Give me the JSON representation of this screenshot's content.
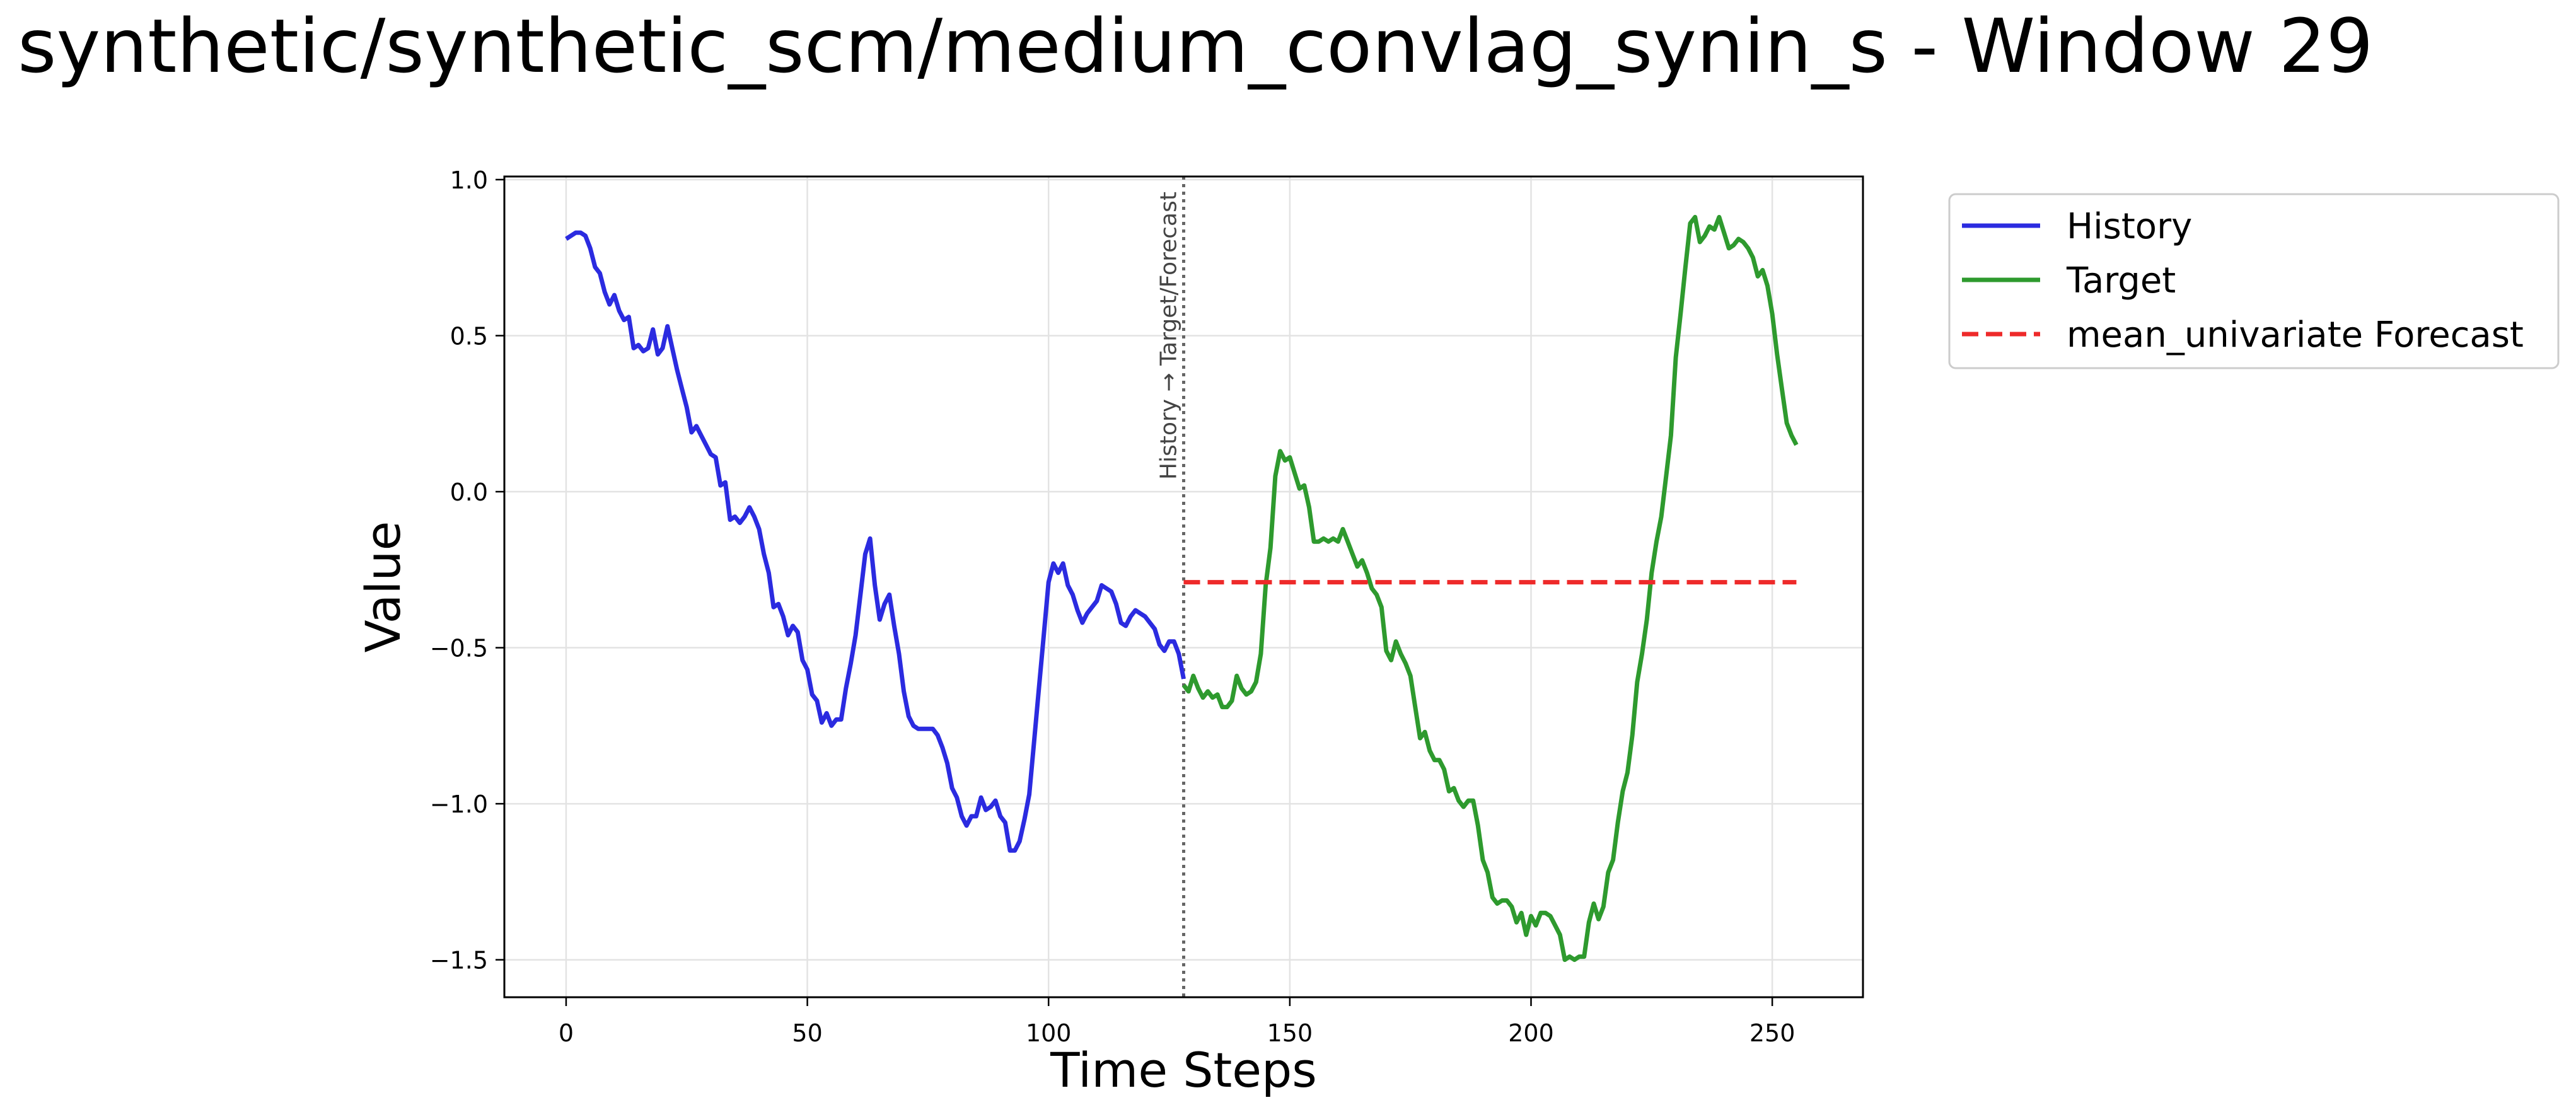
{
  "title": "synthetic/synthetic_scm/medium_convlag_synin_s - Window 29",
  "chart_data": {
    "type": "line",
    "title": "synthetic/synthetic_scm/medium_convlag_synin_s - Window 29",
    "xlabel": "Time Steps",
    "ylabel": "Value",
    "xlim": [
      -12.8,
      268.8
    ],
    "ylim": [
      -1.62,
      1.01
    ],
    "xticks": [
      0,
      50,
      100,
      150,
      200,
      250
    ],
    "yticks": [
      -1.5,
      -1.0,
      -0.5,
      0.0,
      0.5,
      1.0
    ],
    "xtick_labels": [
      "0",
      "50",
      "100",
      "150",
      "200",
      "250"
    ],
    "ytick_labels": [
      "−1.5",
      "−1.0",
      "−0.5",
      "0.0",
      "0.5",
      "1.0"
    ],
    "grid": true,
    "legend_position": "outside-top-right",
    "divider": {
      "x": 128,
      "label": "History → Target/Forecast",
      "color": "#666666"
    },
    "series": [
      {
        "name": "History",
        "color": "#2b2be0",
        "style": "solid",
        "points": [
          [
            0,
            0.81
          ],
          [
            1,
            0.82
          ],
          [
            2,
            0.83
          ],
          [
            3,
            0.83
          ],
          [
            4,
            0.82
          ],
          [
            5,
            0.78
          ],
          [
            6,
            0.72
          ],
          [
            7,
            0.7
          ],
          [
            8,
            0.64
          ],
          [
            9,
            0.6
          ],
          [
            10,
            0.63
          ],
          [
            11,
            0.58
          ],
          [
            12,
            0.55
          ],
          [
            13,
            0.56
          ],
          [
            14,
            0.46
          ],
          [
            15,
            0.47
          ],
          [
            16,
            0.45
          ],
          [
            17,
            0.46
          ],
          [
            18,
            0.52
          ],
          [
            19,
            0.44
          ],
          [
            20,
            0.46
          ],
          [
            21,
            0.53
          ],
          [
            22,
            0.46
          ],
          [
            23,
            0.39
          ],
          [
            24,
            0.33
          ],
          [
            25,
            0.27
          ],
          [
            26,
            0.19
          ],
          [
            27,
            0.21
          ],
          [
            28,
            0.18
          ],
          [
            29,
            0.15
          ],
          [
            30,
            0.12
          ],
          [
            31,
            0.11
          ],
          [
            32,
            0.02
          ],
          [
            33,
            0.03
          ],
          [
            34,
            -0.09
          ],
          [
            35,
            -0.08
          ],
          [
            36,
            -0.1
          ],
          [
            37,
            -0.08
          ],
          [
            38,
            -0.05
          ],
          [
            39,
            -0.08
          ],
          [
            40,
            -0.12
          ],
          [
            41,
            -0.2
          ],
          [
            42,
            -0.26
          ],
          [
            43,
            -0.37
          ],
          [
            44,
            -0.36
          ],
          [
            45,
            -0.4
          ],
          [
            46,
            -0.46
          ],
          [
            47,
            -0.43
          ],
          [
            48,
            -0.45
          ],
          [
            49,
            -0.54
          ],
          [
            50,
            -0.57
          ],
          [
            51,
            -0.65
          ],
          [
            52,
            -0.67
          ],
          [
            53,
            -0.74
          ],
          [
            54,
            -0.71
          ],
          [
            55,
            -0.75
          ],
          [
            56,
            -0.73
          ],
          [
            57,
            -0.73
          ],
          [
            58,
            -0.63
          ],
          [
            59,
            -0.55
          ],
          [
            60,
            -0.46
          ],
          [
            61,
            -0.33
          ],
          [
            62,
            -0.2
          ],
          [
            63,
            -0.15
          ],
          [
            64,
            -0.3
          ],
          [
            65,
            -0.41
          ],
          [
            66,
            -0.36
          ],
          [
            67,
            -0.33
          ],
          [
            68,
            -0.43
          ],
          [
            69,
            -0.52
          ],
          [
            70,
            -0.64
          ],
          [
            71,
            -0.72
          ],
          [
            72,
            -0.75
          ],
          [
            73,
            -0.76
          ],
          [
            74,
            -0.76
          ],
          [
            75,
            -0.76
          ],
          [
            76,
            -0.76
          ],
          [
            77,
            -0.78
          ],
          [
            78,
            -0.82
          ],
          [
            79,
            -0.87
          ],
          [
            80,
            -0.95
          ],
          [
            81,
            -0.98
          ],
          [
            82,
            -1.04
          ],
          [
            83,
            -1.07
          ],
          [
            84,
            -1.04
          ],
          [
            85,
            -1.04
          ],
          [
            86,
            -0.98
          ],
          [
            87,
            -1.02
          ],
          [
            88,
            -1.01
          ],
          [
            89,
            -0.99
          ],
          [
            90,
            -1.04
          ],
          [
            91,
            -1.06
          ],
          [
            92,
            -1.15
          ],
          [
            93,
            -1.15
          ],
          [
            94,
            -1.12
          ],
          [
            95,
            -1.05
          ],
          [
            96,
            -0.97
          ],
          [
            97,
            -0.8
          ],
          [
            98,
            -0.63
          ],
          [
            99,
            -0.46
          ],
          [
            100,
            -0.29
          ],
          [
            101,
            -0.23
          ],
          [
            102,
            -0.26
          ],
          [
            103,
            -0.23
          ],
          [
            104,
            -0.3
          ],
          [
            105,
            -0.33
          ],
          [
            106,
            -0.38
          ],
          [
            107,
            -0.42
          ],
          [
            108,
            -0.39
          ],
          [
            109,
            -0.37
          ],
          [
            110,
            -0.35
          ],
          [
            111,
            -0.3
          ],
          [
            112,
            -0.31
          ],
          [
            113,
            -0.32
          ],
          [
            114,
            -0.36
          ],
          [
            115,
            -0.42
          ],
          [
            116,
            -0.43
          ],
          [
            117,
            -0.4
          ],
          [
            118,
            -0.38
          ],
          [
            119,
            -0.39
          ],
          [
            120,
            -0.4
          ],
          [
            121,
            -0.42
          ],
          [
            122,
            -0.44
          ],
          [
            123,
            -0.49
          ],
          [
            124,
            -0.51
          ],
          [
            125,
            -0.48
          ],
          [
            126,
            -0.48
          ],
          [
            127,
            -0.52
          ],
          [
            128,
            -0.6
          ]
        ]
      },
      {
        "name": "Target",
        "color": "#2e9a2e",
        "style": "solid",
        "points": [
          [
            128,
            -0.62
          ],
          [
            129,
            -0.64
          ],
          [
            130,
            -0.59
          ],
          [
            131,
            -0.63
          ],
          [
            132,
            -0.66
          ],
          [
            133,
            -0.64
          ],
          [
            134,
            -0.66
          ],
          [
            135,
            -0.65
          ],
          [
            136,
            -0.69
          ],
          [
            137,
            -0.69
          ],
          [
            138,
            -0.67
          ],
          [
            139,
            -0.59
          ],
          [
            140,
            -0.63
          ],
          [
            141,
            -0.65
          ],
          [
            142,
            -0.64
          ],
          [
            143,
            -0.61
          ],
          [
            144,
            -0.52
          ],
          [
            145,
            -0.3
          ],
          [
            146,
            -0.18
          ],
          [
            147,
            0.05
          ],
          [
            148,
            0.13
          ],
          [
            149,
            0.1
          ],
          [
            150,
            0.11
          ],
          [
            151,
            0.06
          ],
          [
            152,
            0.01
          ],
          [
            153,
            0.02
          ],
          [
            154,
            -0.05
          ],
          [
            155,
            -0.16
          ],
          [
            156,
            -0.16
          ],
          [
            157,
            -0.15
          ],
          [
            158,
            -0.16
          ],
          [
            159,
            -0.15
          ],
          [
            160,
            -0.16
          ],
          [
            161,
            -0.12
          ],
          [
            162,
            -0.16
          ],
          [
            163,
            -0.2
          ],
          [
            164,
            -0.24
          ],
          [
            165,
            -0.22
          ],
          [
            166,
            -0.26
          ],
          [
            167,
            -0.31
          ],
          [
            168,
            -0.33
          ],
          [
            169,
            -0.37
          ],
          [
            170,
            -0.51
          ],
          [
            171,
            -0.54
          ],
          [
            172,
            -0.48
          ],
          [
            173,
            -0.52
          ],
          [
            174,
            -0.55
          ],
          [
            175,
            -0.59
          ],
          [
            176,
            -0.69
          ],
          [
            177,
            -0.79
          ],
          [
            178,
            -0.77
          ],
          [
            179,
            -0.83
          ],
          [
            180,
            -0.86
          ],
          [
            181,
            -0.86
          ],
          [
            182,
            -0.89
          ],
          [
            183,
            -0.96
          ],
          [
            184,
            -0.95
          ],
          [
            185,
            -0.99
          ],
          [
            186,
            -1.01
          ],
          [
            187,
            -0.99
          ],
          [
            188,
            -0.99
          ],
          [
            189,
            -1.07
          ],
          [
            190,
            -1.18
          ],
          [
            191,
            -1.22
          ],
          [
            192,
            -1.3
          ],
          [
            193,
            -1.32
          ],
          [
            194,
            -1.31
          ],
          [
            195,
            -1.31
          ],
          [
            196,
            -1.33
          ],
          [
            197,
            -1.38
          ],
          [
            198,
            -1.35
          ],
          [
            199,
            -1.42
          ],
          [
            200,
            -1.36
          ],
          [
            201,
            -1.39
          ],
          [
            202,
            -1.35
          ],
          [
            203,
            -1.35
          ],
          [
            204,
            -1.36
          ],
          [
            205,
            -1.39
          ],
          [
            206,
            -1.42
          ],
          [
            207,
            -1.5
          ],
          [
            208,
            -1.49
          ],
          [
            209,
            -1.5
          ],
          [
            210,
            -1.49
          ],
          [
            211,
            -1.49
          ],
          [
            212,
            -1.38
          ],
          [
            213,
            -1.32
          ],
          [
            214,
            -1.37
          ],
          [
            215,
            -1.33
          ],
          [
            216,
            -1.22
          ],
          [
            217,
            -1.18
          ],
          [
            218,
            -1.06
          ],
          [
            219,
            -0.96
          ],
          [
            220,
            -0.9
          ],
          [
            221,
            -0.78
          ],
          [
            222,
            -0.61
          ],
          [
            223,
            -0.52
          ],
          [
            224,
            -0.41
          ],
          [
            225,
            -0.26
          ],
          [
            226,
            -0.16
          ],
          [
            227,
            -0.08
          ],
          [
            228,
            0.05
          ],
          [
            229,
            0.18
          ],
          [
            230,
            0.43
          ],
          [
            231,
            0.57
          ],
          [
            232,
            0.72
          ],
          [
            233,
            0.86
          ],
          [
            234,
            0.88
          ],
          [
            235,
            0.8
          ],
          [
            236,
            0.82
          ],
          [
            237,
            0.85
          ],
          [
            238,
            0.84
          ],
          [
            239,
            0.88
          ],
          [
            240,
            0.83
          ],
          [
            241,
            0.78
          ],
          [
            242,
            0.79
          ],
          [
            243,
            0.81
          ],
          [
            244,
            0.8
          ],
          [
            245,
            0.78
          ],
          [
            246,
            0.75
          ],
          [
            247,
            0.69
          ],
          [
            248,
            0.71
          ],
          [
            249,
            0.66
          ],
          [
            250,
            0.57
          ],
          [
            251,
            0.44
          ],
          [
            252,
            0.33
          ],
          [
            253,
            0.22
          ],
          [
            254,
            0.18
          ],
          [
            255,
            0.15
          ]
        ]
      },
      {
        "name": "mean_univariate Forecast",
        "color": "#ee2a2a",
        "style": "dashed",
        "points": [
          [
            128,
            -0.29
          ],
          [
            255,
            -0.29
          ]
        ]
      }
    ]
  }
}
